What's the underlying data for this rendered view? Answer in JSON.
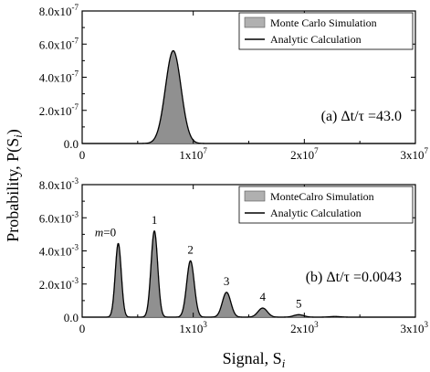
{
  "ylabel": "Probability, P(S",
  "ylabel_sub": "i",
  "ylabel_tail": ")",
  "xlabel": "Signal, S",
  "xlabel_sub": "i",
  "chart_data": [
    {
      "type": "area",
      "panel": "top",
      "x_scale": 10000000,
      "y_scale": 1e-07,
      "xlim": [
        0,
        3
      ],
      "ylim": [
        0,
        8
      ],
      "x_ticks": [
        0,
        1,
        2,
        3
      ],
      "x_tick_labels": [
        "0",
        "1x10",
        "2x10",
        "3x10"
      ],
      "x_tick_exps": [
        "",
        "7",
        "7",
        "7"
      ],
      "y_ticks": [
        0,
        2,
        4,
        6,
        8
      ],
      "y_tick_labels": [
        "0.0",
        "2.0x10",
        "4.0x10",
        "6.0x10",
        "8.0x10"
      ],
      "y_tick_exps": [
        "",
        "-7",
        "-7",
        "-7",
        "-7"
      ],
      "annotation": "(a) Δt/τ =43.0",
      "legend": {
        "position": "top-right",
        "entries": [
          "Monte Carlo Simulation",
          "Analytic Calculation"
        ]
      },
      "series": [
        {
          "name": "Monte Carlo Simulation",
          "style": "histogram",
          "color": "#b0b0b0",
          "peaks": [
            {
              "center": 0.82,
              "sigma": 0.07,
              "height": 5.6
            }
          ]
        },
        {
          "name": "Analytic Calculation",
          "style": "line",
          "color": "#000000",
          "peaks": [
            {
              "center": 0.82,
              "sigma": 0.07,
              "height": 5.6
            }
          ]
        }
      ]
    },
    {
      "type": "area",
      "panel": "bottom",
      "x_scale": 1000,
      "y_scale": 0.001,
      "xlim": [
        0,
        3
      ],
      "ylim": [
        0,
        8
      ],
      "x_ticks": [
        0,
        1,
        2,
        3
      ],
      "x_tick_labels": [
        "0",
        "1x10",
        "2x10",
        "3x10"
      ],
      "x_tick_exps": [
        "",
        "3",
        "3",
        "3"
      ],
      "y_ticks": [
        0,
        2,
        4,
        6,
        8
      ],
      "y_tick_labels": [
        "0.0",
        "2.0x10",
        "4.0x10",
        "6.0x10",
        "8.0x10"
      ],
      "y_tick_exps": [
        "",
        "-3",
        "-3",
        "-3",
        "-3"
      ],
      "annotation": "(b) Δt/τ =0.0043",
      "peak_labels": [
        "m=0",
        "1",
        "2",
        "3",
        "4",
        "5"
      ],
      "legend": {
        "position": "top-right",
        "entries": [
          "MonteCalro Simulation",
          "Analytic Calculation"
        ]
      },
      "series": [
        {
          "name": "MonteCalro Simulation",
          "style": "histogram",
          "color": "#b0b0b0",
          "peaks": [
            {
              "center": 0.325,
              "sigma": 0.027,
              "height": 4.45
            },
            {
              "center": 0.65,
              "sigma": 0.03,
              "height": 5.2
            },
            {
              "center": 0.975,
              "sigma": 0.034,
              "height": 3.4
            },
            {
              "center": 1.3,
              "sigma": 0.038,
              "height": 1.5
            },
            {
              "center": 1.625,
              "sigma": 0.042,
              "height": 0.55
            },
            {
              "center": 1.95,
              "sigma": 0.045,
              "height": 0.15
            },
            {
              "center": 2.275,
              "sigma": 0.048,
              "height": 0.04
            }
          ]
        },
        {
          "name": "Analytic Calculation",
          "style": "line",
          "color": "#000000",
          "peaks": [
            {
              "center": 0.325,
              "sigma": 0.027,
              "height": 4.45
            },
            {
              "center": 0.65,
              "sigma": 0.03,
              "height": 5.2
            },
            {
              "center": 0.975,
              "sigma": 0.034,
              "height": 3.4
            },
            {
              "center": 1.3,
              "sigma": 0.038,
              "height": 1.5
            },
            {
              "center": 1.625,
              "sigma": 0.042,
              "height": 0.55
            },
            {
              "center": 1.95,
              "sigma": 0.045,
              "height": 0.15
            },
            {
              "center": 2.275,
              "sigma": 0.048,
              "height": 0.04
            }
          ]
        }
      ]
    }
  ]
}
